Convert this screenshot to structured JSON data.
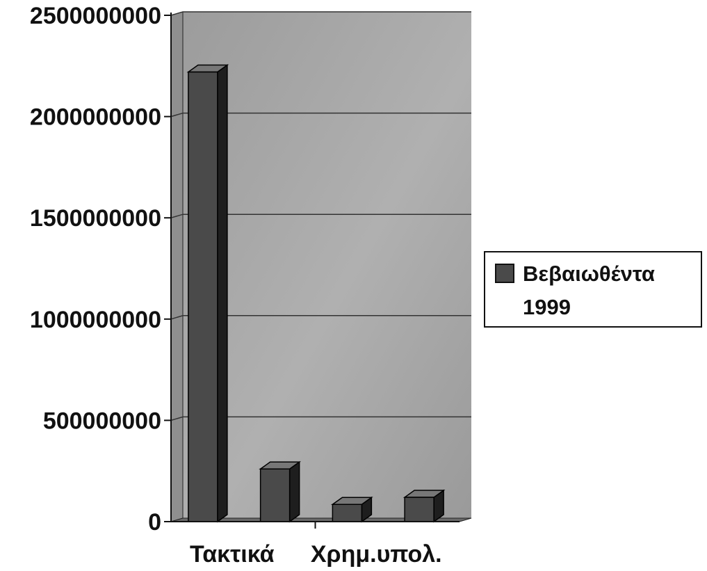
{
  "chart_data": {
    "type": "bar",
    "categories": [
      "Τακτικά",
      "",
      "Χρημ.υπολ.",
      ""
    ],
    "series": [
      {
        "name": "Βεβαιωθέντα 1999",
        "values": [
          2220000000,
          260000000,
          85000000,
          120000000
        ]
      }
    ],
    "ylim": [
      0,
      2500000000
    ],
    "yticks": [
      "0",
      "500000000",
      "1000000000",
      "1500000000",
      "2000000000",
      "2500000000"
    ],
    "ytick_values": [
      0,
      500000000,
      1000000000,
      1500000000,
      2000000000,
      2500000000
    ],
    "grid": true,
    "legend_position": "right",
    "legend_lines": [
      "Βεβαιωθέντα",
      "1999"
    ],
    "colors": {
      "plot_bg": "#a9a9a9",
      "side_wall": "#8f8f8f",
      "floor": "#6a6a6a",
      "bar_front": "#4a4a4a",
      "bar_side": "#1e1e1e",
      "bar_top": "#777777",
      "gridline": "#333333"
    }
  }
}
